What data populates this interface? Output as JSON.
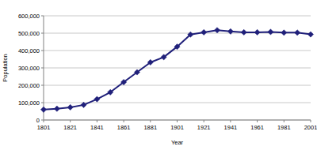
{
  "chart_data": {
    "type": "line",
    "xlabel": "Year",
    "ylabel": "Population",
    "x": [
      1801,
      1811,
      1821,
      1831,
      1841,
      1851,
      1861,
      1871,
      1881,
      1891,
      1901,
      1911,
      1921,
      1931,
      1941,
      1951,
      1961,
      1971,
      1981,
      1991,
      2001
    ],
    "values": [
      60000,
      65000,
      73000,
      87000,
      120000,
      160000,
      218000,
      275000,
      332000,
      362000,
      422000,
      492000,
      505000,
      517000,
      510000,
      505000,
      505000,
      507000,
      503000,
      503000,
      493000
    ],
    "color": "#20207a",
    "marker": "diamond",
    "line_style": "solid",
    "xlim": [
      1801,
      2001
    ],
    "xticks": [
      1801,
      1821,
      1841,
      1861,
      1881,
      1901,
      1921,
      1941,
      1961,
      1981,
      2001
    ],
    "ylim": [
      0,
      600000
    ],
    "yticks": [
      0,
      {
        "value": 100000,
        "label": "100,000"
      },
      {
        "value": 200000,
        "label": "200,000"
      },
      {
        "value": 300000,
        "label": "300,000"
      },
      {
        "value": 400000,
        "label": "400,000"
      },
      {
        "value": 500000,
        "label": "500,000"
      },
      {
        "value": 600000,
        "label": "600,000"
      }
    ],
    "grid": true
  }
}
